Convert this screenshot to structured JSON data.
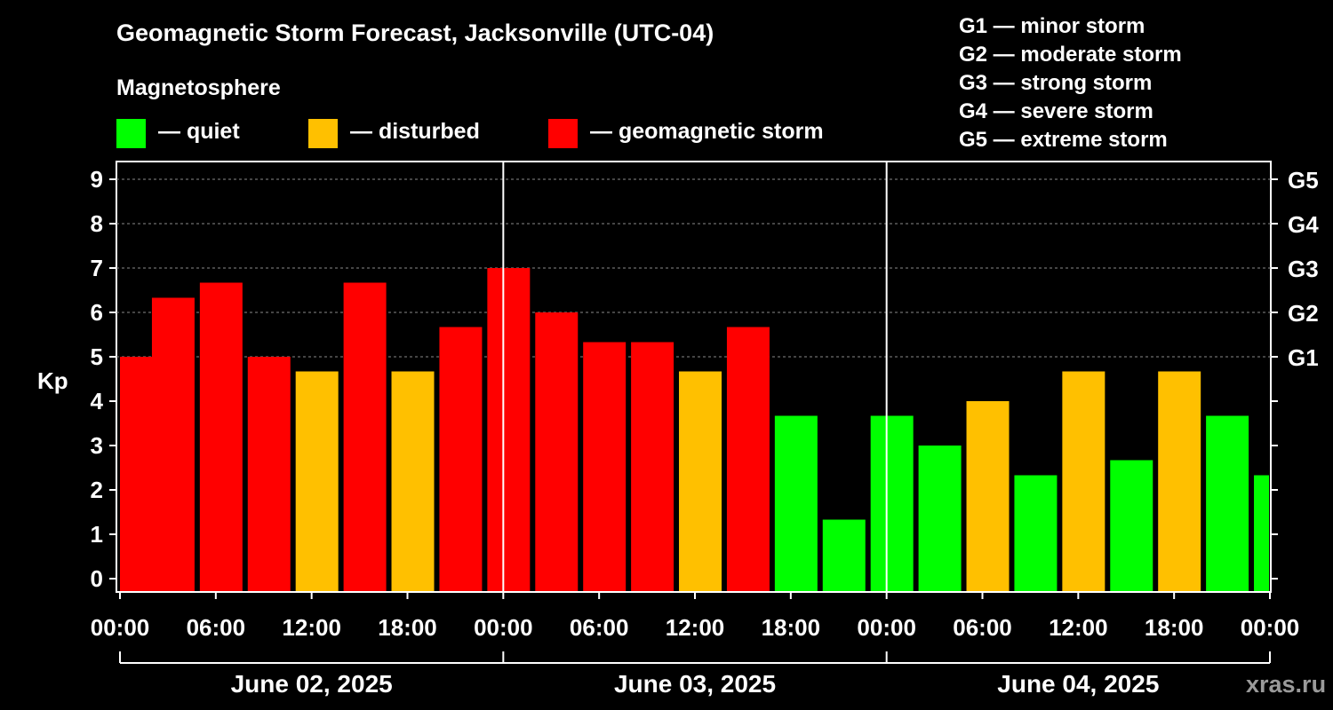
{
  "header": {
    "title": "Geomagnetic Storm Forecast, Jacksonville (UTC-04)",
    "magnetosphere_label": "Magnetosphere"
  },
  "legend": [
    {
      "key": "quiet",
      "label": "— quiet",
      "color": "#00ff00"
    },
    {
      "key": "disturbed",
      "label": "— disturbed",
      "color": "#ffc000"
    },
    {
      "key": "storm",
      "label": "— geomagnetic storm",
      "color": "#ff0000"
    }
  ],
  "storm_scale": [
    "G1 — minor storm",
    "G2 — moderate storm",
    "G3 — strong storm",
    "G4 — severe storm",
    "G5 — extreme storm"
  ],
  "watermark": "xras.ru",
  "colors": {
    "quiet": "#00ff00",
    "disturbed": "#ffc000",
    "storm": "#ff0000"
  },
  "chart_data": {
    "type": "bar",
    "title": "Geomagnetic Storm Forecast, Jacksonville (UTC-04)",
    "ylabel": "Kp",
    "xlabel": "",
    "ylim": [
      0,
      9
    ],
    "yticks": [
      "0",
      "1",
      "2",
      "3",
      "4",
      "5",
      "6",
      "7",
      "8",
      "9"
    ],
    "right_ticks": [
      {
        "kp": 5,
        "label": "G1"
      },
      {
        "kp": 6,
        "label": "G2"
      },
      {
        "kp": 7,
        "label": "G3"
      },
      {
        "kp": 8,
        "label": "G4"
      },
      {
        "kp": 9,
        "label": "G5"
      }
    ],
    "xticks": [
      "00:00",
      "06:00",
      "12:00",
      "18:00",
      "00:00",
      "06:00",
      "12:00",
      "18:00",
      "00:00",
      "06:00",
      "12:00",
      "18:00",
      "00:00"
    ],
    "dates": [
      "June 02, 2025",
      "June 03, 2025",
      "June 04, 2025"
    ],
    "x_range_hours": [
      0,
      72
    ],
    "bar_width_hours": 2.67,
    "bars": [
      {
        "start": 0,
        "kp": 5.0,
        "level": "storm"
      },
      {
        "start": 2,
        "kp": 6.33,
        "level": "storm"
      },
      {
        "start": 5,
        "kp": 6.67,
        "level": "storm"
      },
      {
        "start": 8,
        "kp": 5.0,
        "level": "storm"
      },
      {
        "start": 11,
        "kp": 4.67,
        "level": "disturbed"
      },
      {
        "start": 14,
        "kp": 6.67,
        "level": "storm"
      },
      {
        "start": 17,
        "kp": 4.67,
        "level": "disturbed"
      },
      {
        "start": 20,
        "kp": 5.67,
        "level": "storm"
      },
      {
        "start": 23,
        "kp": 7.0,
        "level": "storm"
      },
      {
        "start": 26,
        "kp": 6.0,
        "level": "storm"
      },
      {
        "start": 29,
        "kp": 5.33,
        "level": "storm"
      },
      {
        "start": 32,
        "kp": 5.33,
        "level": "storm"
      },
      {
        "start": 35,
        "kp": 4.67,
        "level": "disturbed"
      },
      {
        "start": 38,
        "kp": 5.67,
        "level": "storm"
      },
      {
        "start": 41,
        "kp": 3.67,
        "level": "quiet"
      },
      {
        "start": 44,
        "kp": 1.33,
        "level": "quiet"
      },
      {
        "start": 47,
        "kp": 3.67,
        "level": "quiet"
      },
      {
        "start": 50,
        "kp": 3.0,
        "level": "quiet"
      },
      {
        "start": 53,
        "kp": 4.0,
        "level": "disturbed"
      },
      {
        "start": 56,
        "kp": 2.33,
        "level": "quiet"
      },
      {
        "start": 59,
        "kp": 4.67,
        "level": "disturbed"
      },
      {
        "start": 62,
        "kp": 2.67,
        "level": "quiet"
      },
      {
        "start": 65,
        "kp": 4.67,
        "level": "disturbed"
      },
      {
        "start": 68,
        "kp": 3.67,
        "level": "quiet"
      },
      {
        "start": 71,
        "kp": 2.33,
        "level": "quiet"
      }
    ]
  }
}
